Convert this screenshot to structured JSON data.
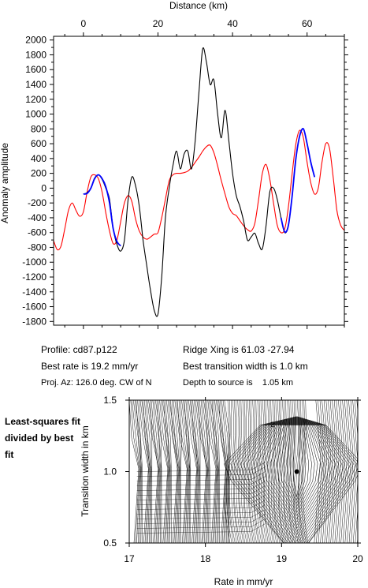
{
  "chart_data": [
    {
      "type": "line",
      "title": "",
      "xlabel": "Distance (km)",
      "ylabel": "Anomaly amplitude",
      "xlim": [
        -8,
        70
      ],
      "ylim": [
        -1850,
        2050
      ],
      "x_ticks": [
        "0",
        "20",
        "40",
        "60"
      ],
      "x_tick_values": [
        0,
        20,
        40,
        60
      ],
      "y_ticks": [
        "2000",
        "1800",
        "1600",
        "1400",
        "1200",
        "1000",
        "800",
        "600",
        "400",
        "200",
        "0",
        "-200",
        "-400",
        "-600",
        "-800",
        "-1000",
        "-1200",
        "-1400",
        "-1600",
        "-1800"
      ],
      "y_tick_values": [
        2000,
        1800,
        1600,
        1400,
        1200,
        1000,
        800,
        600,
        400,
        200,
        0,
        -200,
        -400,
        -600,
        -800,
        -1000,
        -1200,
        -1400,
        -1600,
        -1800
      ],
      "x_axis_position": "top",
      "grid": false,
      "series": [
        {
          "color": "#ff0000",
          "x": [
            -8,
            -7,
            -6,
            -5,
            -4,
            -3,
            -2,
            -1,
            0,
            1,
            2,
            3,
            4,
            5,
            6,
            7,
            8,
            9,
            10,
            11,
            12,
            13,
            14,
            15,
            16,
            17,
            18,
            19,
            20,
            21,
            22,
            23,
            24,
            25,
            26,
            27,
            28,
            29,
            30,
            31,
            32,
            33,
            34,
            35,
            36,
            37,
            38,
            39,
            40,
            41,
            42,
            43,
            44,
            45,
            46,
            47,
            48,
            49,
            50,
            51,
            52,
            53,
            54,
            55,
            56,
            57,
            58,
            59,
            60,
            61,
            62,
            63,
            64,
            65,
            66,
            67,
            68,
            69,
            70
          ],
          "y": [
            -710,
            -830,
            -780,
            -550,
            -300,
            -200,
            -300,
            -380,
            -320,
            -50,
            150,
            180,
            130,
            -50,
            -330,
            -580,
            -750,
            -700,
            -450,
            -200,
            -100,
            -180,
            -420,
            -580,
            -660,
            -690,
            -660,
            -620,
            -600,
            -400,
            -150,
            100,
            180,
            200,
            200,
            210,
            230,
            280,
            350,
            420,
            500,
            560,
            580,
            480,
            300,
            100,
            -80,
            -250,
            -340,
            -370,
            -440,
            -510,
            -560,
            -580,
            -470,
            -150,
            200,
            320,
            120,
            -200,
            -500,
            -600,
            -550,
            -250,
            200,
            600,
            780,
            680,
            350,
            70,
            -80,
            0,
            350,
            600,
            540,
            150,
            -300,
            -500,
            -570
          ]
        },
        {
          "color": "#000000",
          "x": [
            0,
            1,
            2,
            3,
            4,
            5,
            6,
            7,
            8,
            9,
            10,
            11,
            12,
            13,
            14,
            15,
            16,
            17,
            18,
            19,
            20,
            21,
            22,
            23,
            24,
            25,
            26,
            27,
            28,
            29,
            30,
            31,
            32,
            33,
            34,
            35,
            36,
            37,
            38,
            39,
            40,
            41,
            42,
            43,
            44,
            45,
            46,
            47,
            48,
            49,
            50,
            51,
            52,
            53,
            54,
            55,
            56,
            57,
            58,
            59,
            60,
            61,
            62
          ],
          "y": [
            -80,
            -60,
            0,
            120,
            180,
            120,
            0,
            -150,
            -550,
            -760,
            -850,
            -700,
            -150,
            150,
            30,
            -250,
            -700,
            -1050,
            -1380,
            -1650,
            -1700,
            -1200,
            -400,
            0,
            300,
            500,
            260,
            460,
            500,
            260,
            650,
            1300,
            1880,
            1700,
            1400,
            1460,
            1000,
            680,
            1050,
            650,
            200,
            -100,
            -250,
            -450,
            -700,
            -660,
            -610,
            -750,
            -820,
            -500,
            -50,
            0,
            -150,
            -400,
            -600,
            -500,
            -100,
            400,
            700,
            800,
            600,
            350,
            150
          ]
        },
        {
          "color": "#0000ff",
          "x": [
            0,
            1,
            2,
            3,
            4,
            5,
            6,
            7,
            8,
            9,
            10,
            53,
            54,
            55,
            56,
            57,
            58,
            59,
            60,
            61,
            62
          ],
          "y": [
            -80,
            -70,
            0,
            130,
            180,
            130,
            20,
            -200,
            -550,
            -720,
            -780,
            -400,
            -590,
            -500,
            -100,
            400,
            700,
            800,
            600,
            350,
            150
          ]
        }
      ]
    },
    {
      "type": "contour",
      "title": "",
      "xlabel": "Rate in mm/yr",
      "ylabel": "Transition width in km",
      "xlim": [
        17,
        20
      ],
      "ylim": [
        0.5,
        1.5
      ],
      "x_ticks": [
        "17",
        "18",
        "19",
        "20"
      ],
      "x_tick_values": [
        17,
        18,
        19,
        20
      ],
      "y_ticks": [
        "1.5",
        "1.0",
        "0.5"
      ],
      "y_tick_values": [
        1.5,
        1.0,
        0.5
      ],
      "contour_label": "2",
      "best_fit_point": {
        "x": 19.2,
        "y": 1.0
      }
    }
  ],
  "info": {
    "profile": "Profile: cd87.p122",
    "ridge": "Ridge Xing is 61.03 -27.94",
    "best_rate": "Best rate is 19.2 mm/yr",
    "best_width": "Best transition width is 1.0 km",
    "proj_az": "Proj. Az: 126.0 deg. CW of N",
    "depth": "Depth to source is    1.05 km"
  },
  "note": "Least-squares fit divided by best fit"
}
